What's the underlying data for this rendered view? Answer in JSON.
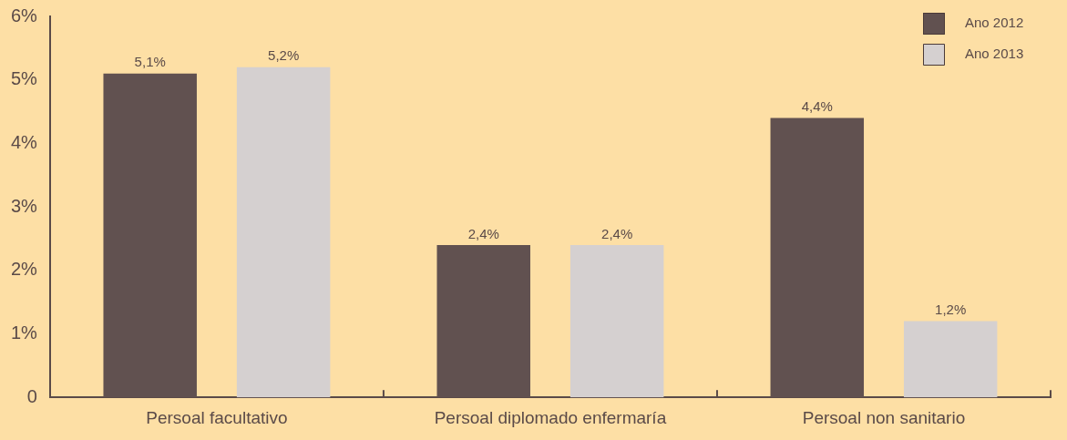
{
  "chart_data": {
    "type": "bar",
    "categories": [
      "Persoal facultativo",
      "Persoal diplomado enfermaría",
      "Persoal non sanitario"
    ],
    "series": [
      {
        "name": "Ano 2012",
        "color": "#615150",
        "values": [
          5.1,
          2.4,
          4.4
        ],
        "value_labels": [
          "5,1%",
          "2,4%",
          "4,4%"
        ]
      },
      {
        "name": "Ano 2013",
        "color": "#d5d0d0",
        "values": [
          5.2,
          2.4,
          1.2
        ],
        "value_labels": [
          "5,2%",
          "2,4%",
          "1,2%"
        ]
      }
    ],
    "ylim": [
      0,
      6
    ],
    "yticks": [
      {
        "value": 0,
        "label": "0"
      },
      {
        "value": 1,
        "label": "1%"
      },
      {
        "value": 2,
        "label": "2%"
      },
      {
        "value": 3,
        "label": "3%"
      },
      {
        "value": 4,
        "label": "4%"
      },
      {
        "value": 5,
        "label": "5%"
      },
      {
        "value": 6,
        "label": "6%"
      }
    ],
    "grid": false,
    "legend": "top right"
  }
}
